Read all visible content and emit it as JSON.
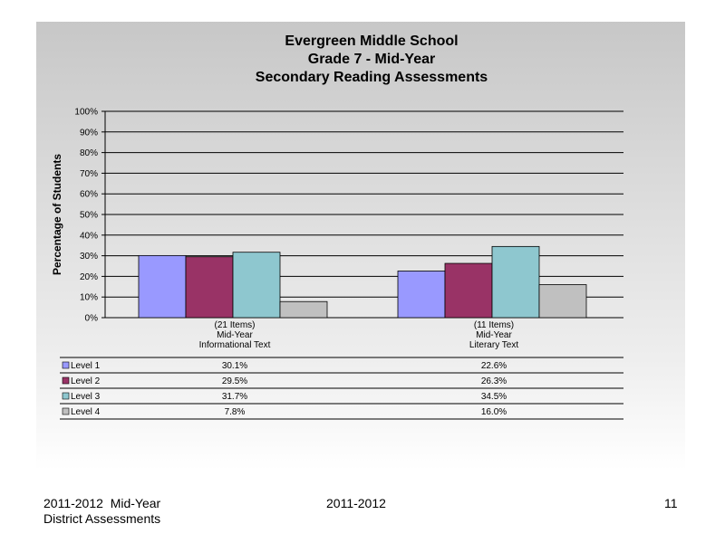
{
  "chart_data": {
    "type": "bar",
    "title_lines": [
      "Evergreen Middle School",
      "Grade 7 - Mid-Year",
      "Secondary Reading Assessments"
    ],
    "ylabel": "Percentage of Students",
    "ylim": [
      0,
      100
    ],
    "yticks": [
      "0%",
      "10%",
      "20%",
      "30%",
      "40%",
      "50%",
      "60%",
      "70%",
      "80%",
      "90%",
      "100%"
    ],
    "categories": [
      [
        "(21 Items)",
        "Mid-Year",
        "Informational Text"
      ],
      [
        "(11 Items)",
        "Mid-Year",
        "Literary Text"
      ]
    ],
    "series": [
      {
        "name": "Level 1",
        "color": "#9999ff",
        "values": [
          30.1,
          22.6
        ],
        "labels": [
          "30.1%",
          "22.6%"
        ]
      },
      {
        "name": "Level 2",
        "color": "#993366",
        "values": [
          29.5,
          26.3
        ],
        "labels": [
          "29.5%",
          "26.3%"
        ]
      },
      {
        "name": "Level 3",
        "color": "#8ec7cf",
        "values": [
          31.7,
          34.5
        ],
        "labels": [
          "31.7%",
          "34.5%"
        ]
      },
      {
        "name": "Level 4",
        "color": "#c0c0c0",
        "values": [
          7.8,
          16.0
        ],
        "labels": [
          "7.8%",
          "16.0%"
        ]
      }
    ],
    "grid": true,
    "legend": "data-table"
  },
  "footer": {
    "left_line1": "2011-2012  Mid-Year",
    "left_line2": "District Assessments",
    "center": "2011-2012",
    "page_number": "11"
  }
}
